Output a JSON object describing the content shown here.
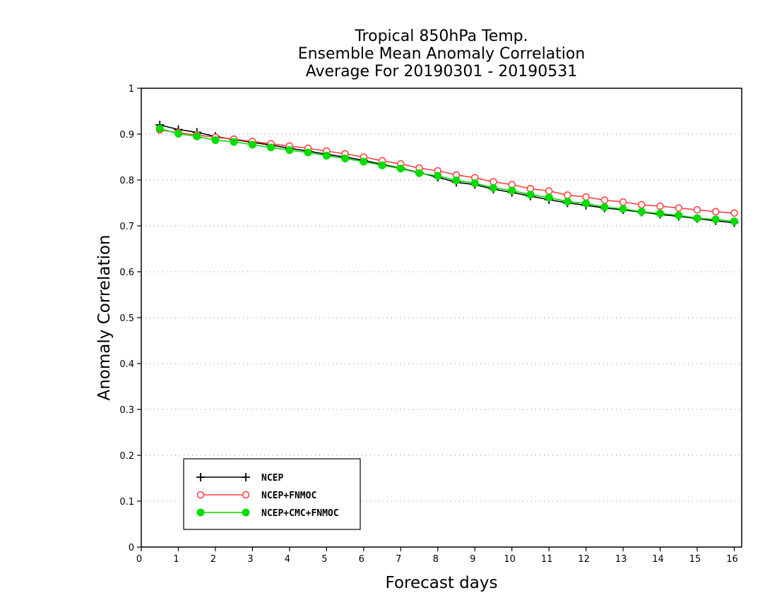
{
  "chart_data": {
    "type": "line",
    "title": [
      "Tropical 850hPa Temp.",
      "Ensemble Mean Anomaly Correlation",
      "Average For 20190301 - 20190531"
    ],
    "xlabel": "Forecast days",
    "ylabel": "Anomaly Correlation",
    "xlim": [
      0,
      16.2
    ],
    "ylim": [
      0,
      1
    ],
    "xticks": [
      "0",
      "1",
      "2",
      "3",
      "4",
      "5",
      "6",
      "7",
      "8",
      "9",
      "10",
      "11",
      "12",
      "13",
      "14",
      "15",
      "16"
    ],
    "yticks": [
      "0",
      "0.1",
      "0.2",
      "0.3",
      "0.4",
      "0.5",
      "0.6",
      "0.7",
      "0.8",
      "0.9",
      "1"
    ],
    "grid": "horizontal dotted",
    "legend_position": "bottom-left",
    "x": [
      0.5,
      1,
      1.5,
      2,
      2.5,
      3,
      3.5,
      4,
      4.5,
      5,
      5.5,
      6,
      6.5,
      7,
      7.5,
      8,
      8.5,
      9,
      9.5,
      10,
      10.5,
      11,
      11.5,
      12,
      12.5,
      13,
      13.5,
      14,
      14.5,
      15,
      15.5,
      16
    ],
    "series": [
      {
        "name": "NCEP",
        "color": "#000000",
        "marker": "plus",
        "values": [
          0.92,
          0.91,
          0.904,
          0.895,
          0.888,
          0.882,
          0.876,
          0.869,
          0.863,
          0.856,
          0.85,
          0.843,
          0.834,
          0.826,
          0.816,
          0.806,
          0.795,
          0.79,
          0.78,
          0.773,
          0.765,
          0.757,
          0.75,
          0.745,
          0.739,
          0.735,
          0.73,
          0.725,
          0.721,
          0.716,
          0.711,
          0.707
        ]
      },
      {
        "name": "NCEP+FNMOC",
        "color": "#ff4444",
        "marker": "open-circle",
        "values": [
          0.909,
          0.903,
          0.898,
          0.893,
          0.889,
          0.884,
          0.879,
          0.874,
          0.869,
          0.863,
          0.857,
          0.85,
          0.842,
          0.835,
          0.826,
          0.82,
          0.811,
          0.805,
          0.796,
          0.79,
          0.781,
          0.776,
          0.767,
          0.763,
          0.756,
          0.752,
          0.746,
          0.743,
          0.739,
          0.735,
          0.731,
          0.728
        ]
      },
      {
        "name": "NCEP+CMC+FNMOC",
        "color": "#00dd00",
        "marker": "filled-circle",
        "values": [
          0.912,
          0.901,
          0.895,
          0.887,
          0.883,
          0.877,
          0.871,
          0.865,
          0.86,
          0.853,
          0.847,
          0.84,
          0.832,
          0.825,
          0.815,
          0.809,
          0.799,
          0.793,
          0.783,
          0.777,
          0.768,
          0.762,
          0.753,
          0.749,
          0.741,
          0.737,
          0.731,
          0.727,
          0.723,
          0.717,
          0.714,
          0.71
        ]
      }
    ]
  }
}
